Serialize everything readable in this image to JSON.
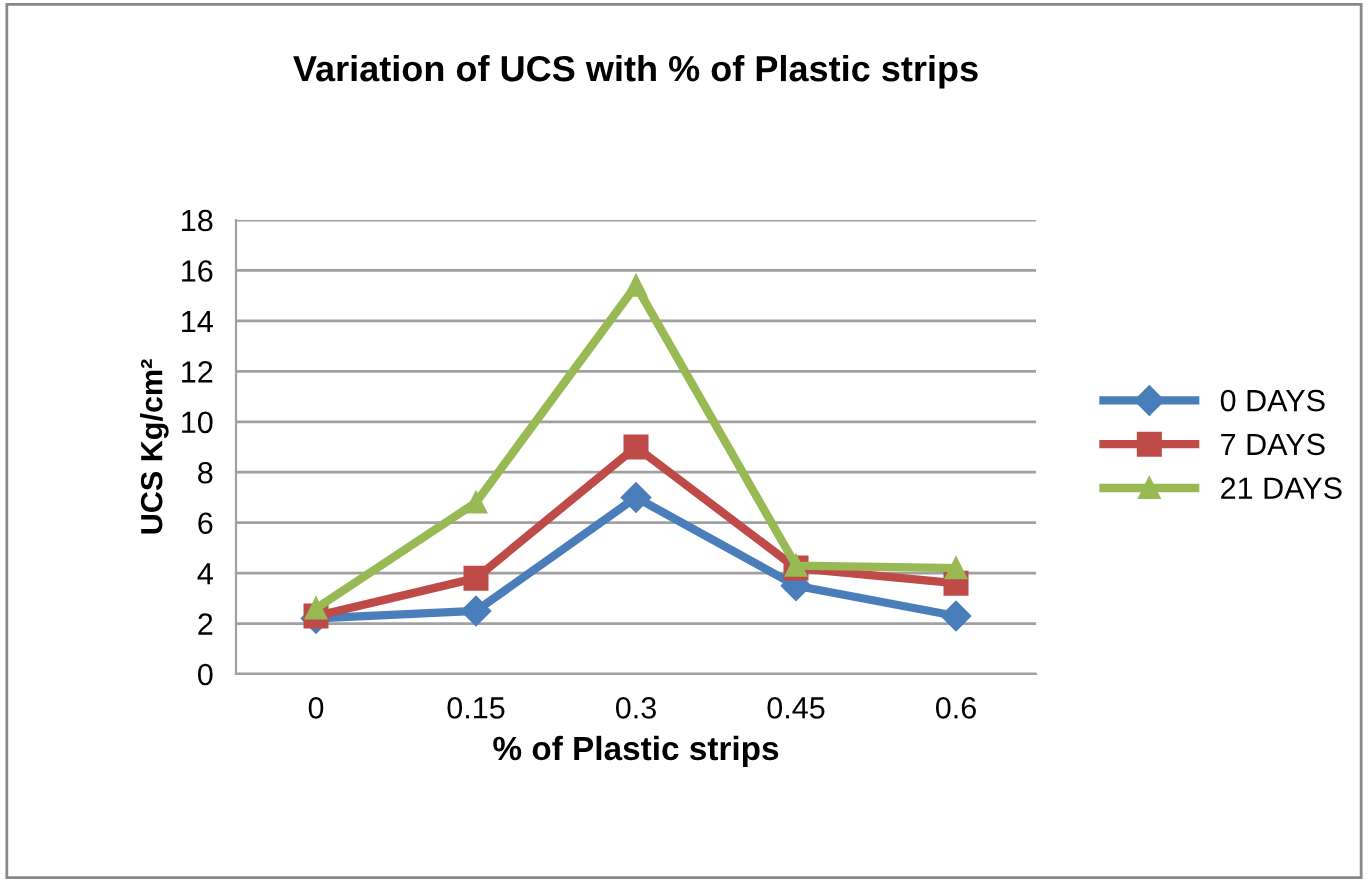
{
  "chart_data": {
    "type": "line",
    "title": "Variation of UCS with % of Plastic strips",
    "xlabel": "% of Plastic strips",
    "ylabel": "UCS Kg/cm²",
    "categories": [
      "0",
      "0.15",
      "0.3",
      "0.45",
      "0.6"
    ],
    "series": [
      {
        "name": "0 DAYS",
        "color": "#4a7ebb",
        "marker": "diamond",
        "values": [
          2.2,
          2.5,
          7.0,
          3.5,
          2.3
        ]
      },
      {
        "name": "7 DAYS",
        "color": "#be4b48",
        "marker": "square",
        "values": [
          2.3,
          3.8,
          9.0,
          4.2,
          3.6
        ]
      },
      {
        "name": "21 DAYS",
        "color": "#98b954",
        "marker": "triangle",
        "values": [
          2.6,
          6.8,
          15.4,
          4.3,
          4.2
        ]
      }
    ],
    "ylim": [
      0,
      18
    ],
    "yticks": [
      0,
      2,
      4,
      6,
      8,
      10,
      12,
      14,
      16,
      18
    ],
    "grid": "y",
    "legend": "right",
    "line_style": "solid"
  }
}
